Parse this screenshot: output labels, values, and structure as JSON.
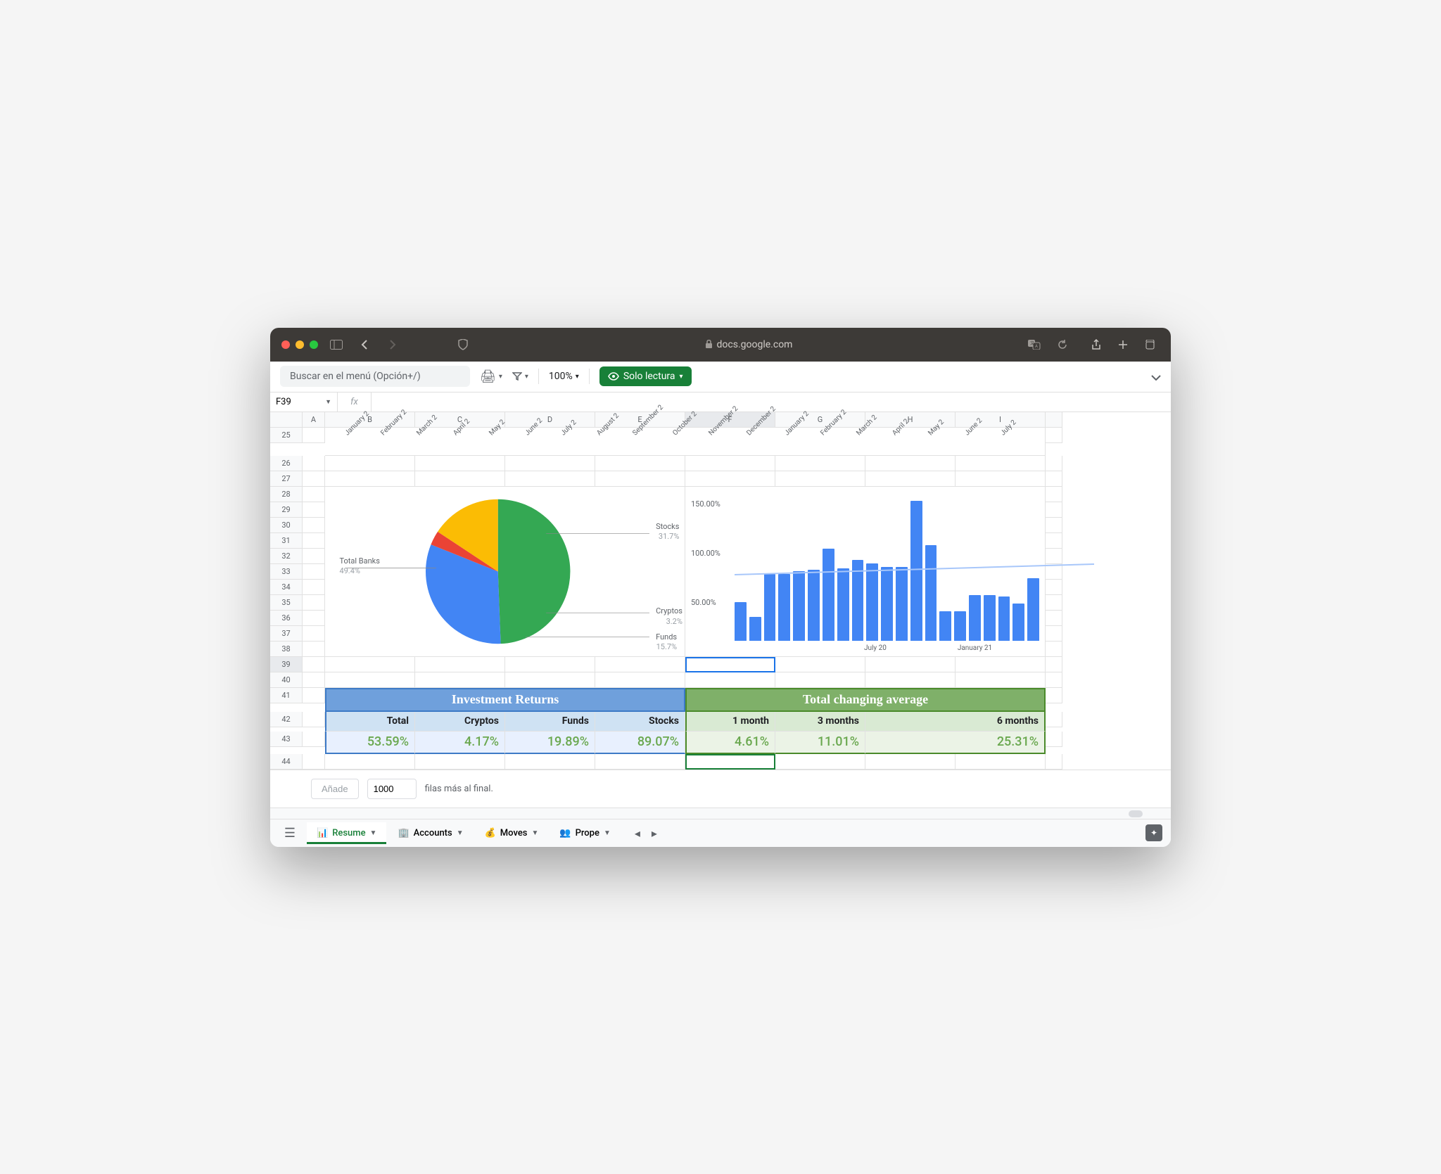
{
  "browser": {
    "url_host": "docs.google.com"
  },
  "toolbar": {
    "search_placeholder": "Buscar en el menú (Opción+/)",
    "zoom": "100%",
    "readonly_label": "Solo lectura"
  },
  "namebox": {
    "cell_ref": "F39",
    "fx": "fx"
  },
  "columns": [
    "A",
    "B",
    "C",
    "D",
    "E",
    "F",
    "G",
    "H",
    "I"
  ],
  "rows": [
    25,
    26,
    27,
    28,
    29,
    30,
    31,
    32,
    33,
    34,
    35,
    36,
    37,
    38,
    39,
    40,
    41,
    42,
    43,
    44
  ],
  "months": [
    "January 2",
    "February 2",
    "March 2",
    "April 2",
    "May 2",
    "June 2",
    "July 2",
    "August 2",
    "September 2",
    "October 2",
    "November 2",
    "December 2",
    "January 2",
    "February 2",
    "March 2",
    "April 2",
    "May 2",
    "June 2",
    "July 2"
  ],
  "pie": {
    "type": "pie",
    "slices": [
      {
        "label": "Total Banks",
        "pct": 49.4,
        "color": "#34a853"
      },
      {
        "label": "Stocks",
        "pct": 31.7,
        "color": "#4285f4"
      },
      {
        "label": "Cryptos",
        "pct": 3.2,
        "color": "#ea4335"
      },
      {
        "label": "Funds",
        "pct": 15.7,
        "color": "#fbbc04"
      }
    ],
    "label_color": "#5f6368",
    "pct_color": "#9aa0a6"
  },
  "barchart": {
    "type": "bar",
    "yticks": [
      "150.00%",
      "100.00%",
      "50.00%"
    ],
    "ymax": 200,
    "bar_color": "#4285f4",
    "trend_color": "#a8c7fa",
    "values": [
      52,
      32,
      90,
      90,
      94,
      96,
      125,
      98,
      110,
      105,
      100,
      100,
      190,
      130,
      40,
      40,
      62,
      62,
      60,
      50,
      85
    ],
    "xlabels": [
      {
        "text": "July 20",
        "pos_pct": 36
      },
      {
        "text": "January 21",
        "pos_pct": 62
      }
    ]
  },
  "tables": {
    "left": {
      "header": "Investment Returns",
      "header_bg": "#6fa0dc",
      "header_border": "#3d7ac6",
      "sub_bg": "#cfe2f3",
      "val_bg": "#e8f0fe",
      "val_color": "#6aa84f",
      "subs": [
        "Total",
        "Cryptos",
        "Funds",
        "Stocks"
      ],
      "vals": [
        "53.59%",
        "4.17%",
        "19.89%",
        "89.07%"
      ]
    },
    "right": {
      "header": "Total changing average",
      "header_bg": "#7fb069",
      "header_border": "#4a8a2a",
      "sub_bg": "#d9ead3",
      "val_bg": "#ebf3e6",
      "val_color": "#6aa84f",
      "subs": [
        "1 month",
        "3 months",
        "6 months"
      ],
      "vals": [
        "4.61%",
        "11.01%",
        "25.31%"
      ]
    }
  },
  "addrows": {
    "btn": "Añade",
    "count": "1000",
    "suffix": "filas más al final."
  },
  "tabs": {
    "items": [
      {
        "icon": "📊",
        "label": "Resume",
        "active": true
      },
      {
        "icon": "🏢",
        "label": "Accounts",
        "active": false
      },
      {
        "icon": "💰",
        "label": "Moves",
        "active": false
      },
      {
        "icon": "👥",
        "label": "Prope",
        "active": false
      }
    ]
  }
}
